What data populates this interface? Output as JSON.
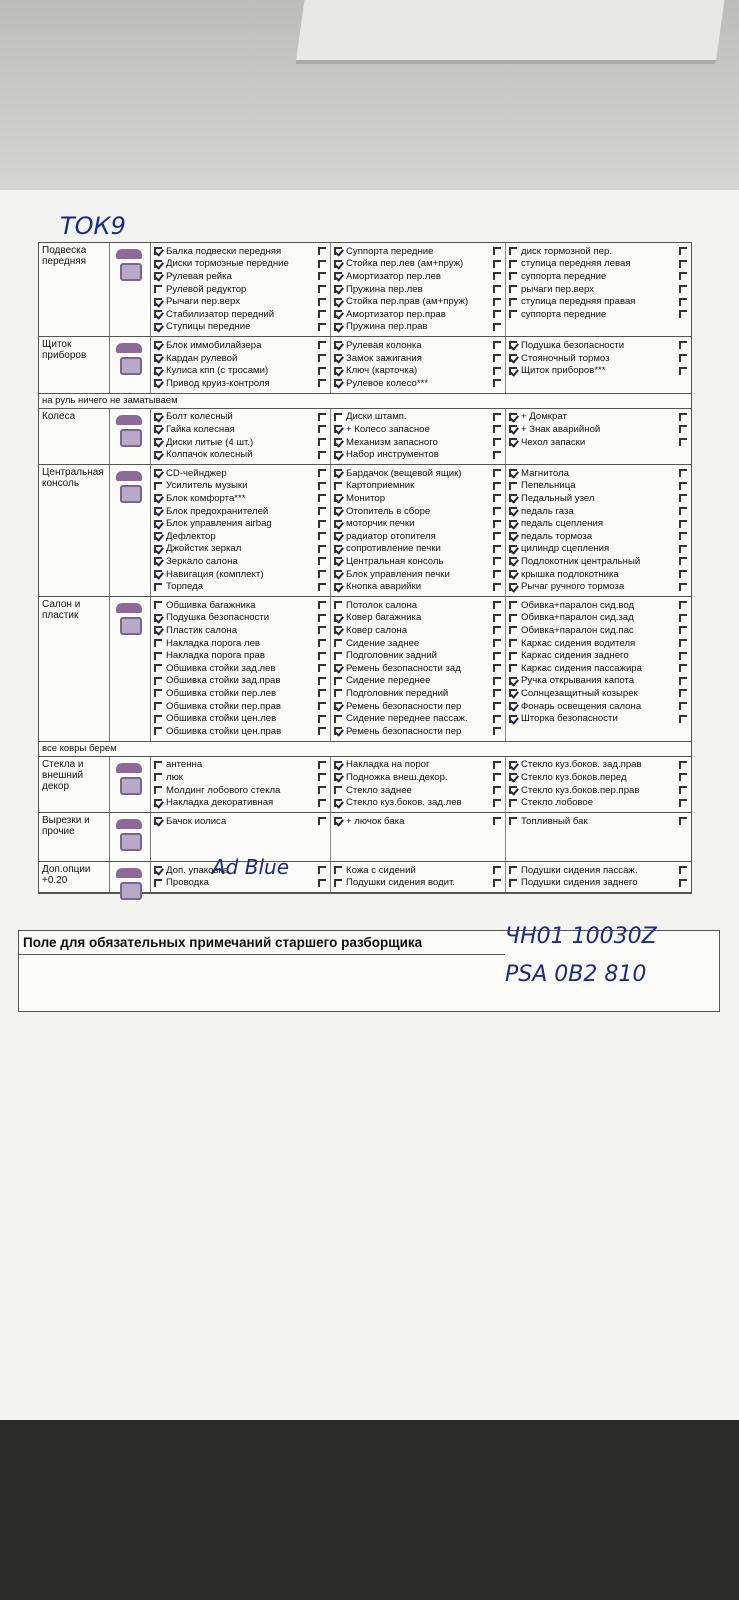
{
  "handwriting": {
    "top": "ТОК9",
    "adblue": "Ad Blue",
    "code1": "ЧН01 10030Z",
    "code2": "PSA 0B2 810"
  },
  "sections": [
    {
      "label": "Подвеска передняя",
      "rows": 7,
      "cols": [
        [
          [
            "Балка подвески передняя",
            true
          ],
          [
            "Диски тормозные передние",
            true
          ],
          [
            "Рулевая рейка",
            true
          ],
          [
            "Рулевой редуктор",
            false
          ],
          [
            "Рычаги пер.верх",
            true
          ],
          [
            "Стабилизатор передний",
            true
          ],
          [
            "Ступицы передние",
            true
          ]
        ],
        [
          [
            "Суппорта передние",
            true
          ],
          [
            "Стойка пер.лев (ам+пруж)",
            true
          ],
          [
            "Амортизатор пер.лев",
            true
          ],
          [
            "Пружина пер.лев",
            true
          ],
          [
            "Стойка пер.прав (ам+пруж)",
            true
          ],
          [
            "Амортизатор пер.прав",
            true
          ],
          [
            "Пружина пер.прав",
            true
          ]
        ],
        [
          [
            "диск тормозной пер.",
            false
          ],
          [
            "ступица передняя левая",
            false
          ],
          [
            "суппорта передние",
            false
          ],
          [
            "рычаги пер.верх",
            false
          ],
          [
            "ступица передняя правая",
            false
          ],
          [
            "суппорта передние",
            false
          ]
        ]
      ]
    },
    {
      "label": "Щиток приборов",
      "rows": 4,
      "cols": [
        [
          [
            "Блок иммобилайзера",
            true
          ],
          [
            "Кардан рулевой",
            true
          ],
          [
            "Кулиса кпп (с тросами)",
            true
          ],
          [
            "Привод круиз-контроля",
            true
          ]
        ],
        [
          [
            "Рулевая колонка",
            true
          ],
          [
            "Замок зажигания",
            true
          ],
          [
            "Ключ (карточка)",
            true
          ],
          [
            "Рулевое колесо***",
            true
          ]
        ],
        [
          [
            "Подушка безопасности",
            true
          ],
          [
            "Стояночный тормоз",
            true
          ],
          [
            "Щиток приборов***",
            true
          ]
        ]
      ]
    },
    {
      "note": "на руль ничего не заматываем"
    },
    {
      "label": "Колеса",
      "rows": 4,
      "cols": [
        [
          [
            "Болт колесный",
            true
          ],
          [
            "Гайка колесная",
            true
          ],
          [
            "Диски литые (4 шт.)",
            true
          ],
          [
            "Колпачок колесный",
            true
          ]
        ],
        [
          [
            "Диски штамп.",
            false
          ],
          [
            "+ Колесо запасное",
            true
          ],
          [
            "Механизм запасного",
            true
          ],
          [
            "Набор инструментов",
            true
          ]
        ],
        [
          [
            "+ Домкрат",
            true
          ],
          [
            "+ Знак аварийной",
            true
          ],
          [
            "Чехол запаски",
            true
          ]
        ]
      ]
    },
    {
      "label": "Центральная консоль",
      "rows": 10,
      "cols": [
        [
          [
            "CD-чейнджер",
            true
          ],
          [
            "Усилитель музыки",
            false
          ],
          [
            "Блок комфорта***",
            true
          ],
          [
            "Блок предохранителей",
            true
          ],
          [
            "Блок управления airbag",
            true
          ],
          [
            "Дефлектор",
            true
          ],
          [
            "Джойстик зеркал",
            true
          ],
          [
            "Зеркало салона",
            true
          ],
          [
            "Навигация (комплект)",
            true
          ],
          [
            "Торпеда",
            false
          ]
        ],
        [
          [
            "Бардачок (вещевой ящик)",
            true
          ],
          [
            "Картоприемник",
            false
          ],
          [
            "Монитор",
            true
          ],
          [
            "Отопитель в сборе",
            true
          ],
          [
            "моторчик печки",
            true
          ],
          [
            "радиатор отопителя",
            true
          ],
          [
            "сопротивление печки",
            true
          ],
          [
            "Центральная консоль",
            true
          ],
          [
            "Блок управления печки",
            true
          ],
          [
            "Кнопка аварийки",
            true
          ]
        ],
        [
          [
            "Магнитола",
            true
          ],
          [
            "Пепельница",
            false
          ],
          [
            "Педальный узел",
            true
          ],
          [
            "педаль газа",
            true
          ],
          [
            "педаль сцепления",
            true
          ],
          [
            "педаль тормоза",
            true
          ],
          [
            "цилиндр сцепления",
            true
          ],
          [
            "Подлокотник центральный",
            true
          ],
          [
            "крышка подлокотника",
            true
          ],
          [
            "Рычаг ручного тормоза",
            true
          ]
        ]
      ]
    },
    {
      "label": "Салон и пластик",
      "rows": 11,
      "cols": [
        [
          [
            "Обшивка багажника",
            false
          ],
          [
            "Подушка безопасности",
            true
          ],
          [
            "Пластик салона",
            true
          ],
          [
            "Накладка порога лев",
            false
          ],
          [
            "Накладка порога прав",
            false
          ],
          [
            "Обшивка стойки зад.лев",
            false
          ],
          [
            "Обшивка стойки зад.прав",
            false
          ],
          [
            "Обшивка стойки пер.лев",
            false
          ],
          [
            "Обшивка стойки пер.прав",
            false
          ],
          [
            "Обшивка стойки цен.лев",
            false
          ],
          [
            "Обшивка стойки цен.прав",
            false
          ]
        ],
        [
          [
            "Потолок салона",
            false
          ],
          [
            "Ковер багажника",
            true
          ],
          [
            "Ковер салона",
            true
          ],
          [
            "Сидение заднее",
            false
          ],
          [
            "Подголовник задний",
            false
          ],
          [
            "Ремень безопасности зад",
            true
          ],
          [
            "Сидение переднее",
            false
          ],
          [
            "Подголовник передний",
            false
          ],
          [
            "Ремень безопасности пер",
            true
          ],
          [
            "Сидение переднее пассаж.",
            false
          ],
          [
            "Ремень безопасности пер",
            true
          ]
        ],
        [
          [
            "Обивка+паралон сид.вод",
            false
          ],
          [
            "Обивка+паралон сид.зад",
            false
          ],
          [
            "Обивка+паралон сид.пас",
            false
          ],
          [
            "Каркас сидения водителя",
            false
          ],
          [
            "Каркас сидения заднего",
            false
          ],
          [
            "Каркас сидения пассажира",
            false
          ],
          [
            "Ручка открывания капота",
            true
          ],
          [
            "Солнцезащитный козырек",
            true
          ],
          [
            "Фонарь освещения салона",
            true
          ],
          [
            "Шторка безопасности",
            true
          ]
        ]
      ]
    },
    {
      "note": "все ковры берем"
    },
    {
      "label": "Стекла и внешний декор",
      "rows": 4,
      "cols": [
        [
          [
            "антенна",
            false
          ],
          [
            "люк",
            false
          ],
          [
            "Молдинг лобового стекла",
            false
          ],
          [
            "Накладка декоративная",
            true
          ]
        ],
        [
          [
            "Накладка на порог",
            true
          ],
          [
            "Подножка внеш.декор.",
            true
          ],
          [
            "Стекло заднее",
            false
          ],
          [
            "Стекло куз.боков. зад.лев",
            true
          ]
        ],
        [
          [
            "Стекло куз.боков. зад.прав",
            true
          ],
          [
            "Стекло куз.боков.перед",
            true
          ],
          [
            "Стекло куз.боков.пер.прав",
            true
          ],
          [
            "Стекло лобовое",
            false
          ]
        ]
      ]
    },
    {
      "label": "Вырезки и прочие",
      "rows": 3.4,
      "cols": [
        [
          [
            "Бачок иолиса",
            true
          ]
        ],
        [
          [
            "+ лючок бака",
            true
          ]
        ],
        [
          [
            "Топливный бак",
            false
          ]
        ]
      ]
    },
    {
      "label": "Доп.опции +0.20",
      "rows": 2,
      "cols": [
        [
          [
            "Доп. упаковка",
            true
          ],
          [
            "Проводка",
            false
          ]
        ],
        [
          [
            "Кожа с сидений",
            false
          ],
          [
            "Подушки сидения водит.",
            false
          ]
        ],
        [
          [
            "Подушки сидения пассаж.",
            false
          ],
          [
            "Подушки сидения заднего",
            false
          ]
        ]
      ]
    }
  ],
  "remarks": {
    "title": "Поле для обязательных примечаний старшего разборщика"
  }
}
